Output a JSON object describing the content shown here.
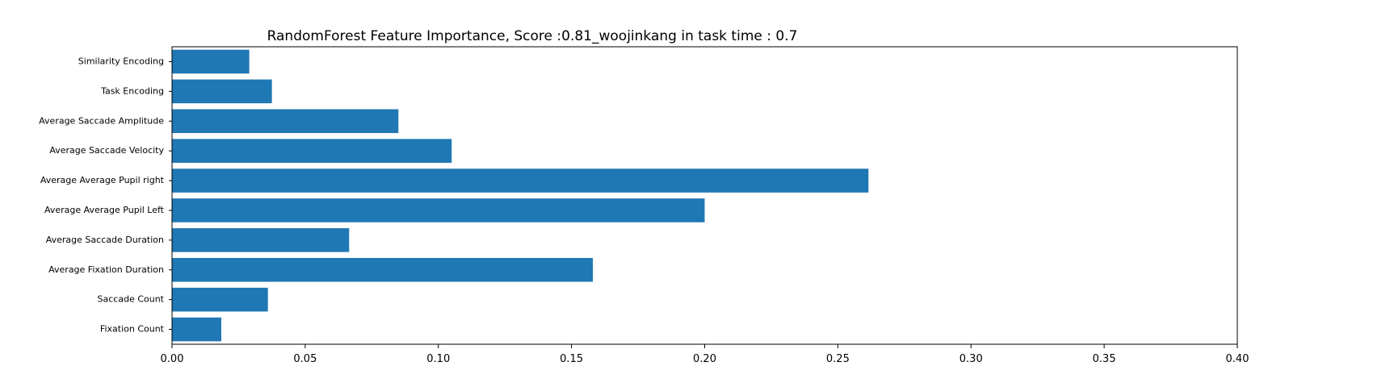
{
  "chart_data": {
    "type": "bar",
    "orientation": "horizontal",
    "title": "RandomForest Feature Importance, Score :0.81_woojinkang in task time : 0.7",
    "xlabel": "",
    "ylabel": "",
    "xlim": [
      0.0,
      0.4
    ],
    "grid": false,
    "legend": "none",
    "bar_color": "#1f77b4",
    "categories": [
      "Fixation Count",
      "Saccade Count",
      "Average Fixation Duration",
      "Average Saccade Duration",
      "Average Average Pupil Left",
      "Average Average Pupil right",
      "Average Saccade Velocity",
      "Average Saccade Amplitude",
      "Task Encoding",
      "Similarity Encoding"
    ],
    "values": [
      0.0185,
      0.036,
      0.158,
      0.0665,
      0.2,
      0.2615,
      0.105,
      0.085,
      0.0375,
      0.029
    ],
    "xticks": [
      0.0,
      0.05,
      0.1,
      0.15,
      0.2,
      0.25,
      0.3,
      0.35,
      0.4
    ],
    "xtick_labels": [
      "0.00",
      "0.05",
      "0.10",
      "0.15",
      "0.20",
      "0.25",
      "0.30",
      "0.35",
      "0.40"
    ]
  }
}
